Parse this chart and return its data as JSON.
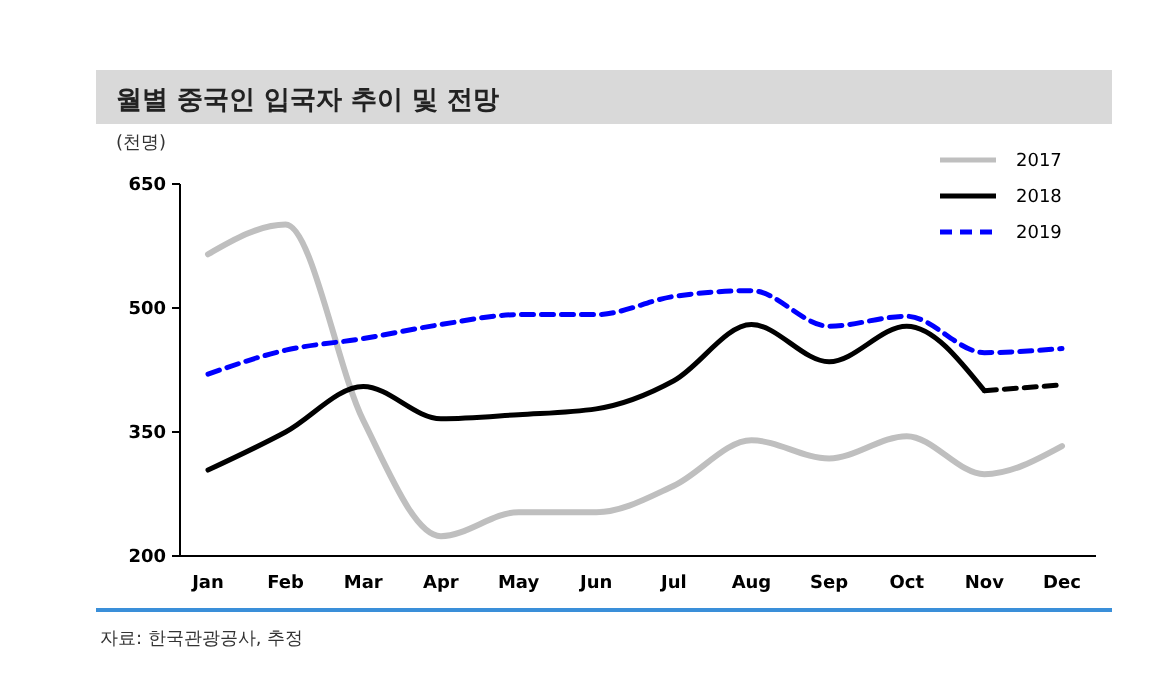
{
  "chart_data": {
    "type": "line",
    "title": "월별 중국인 입국자 추이 및 전망",
    "ylabel": "(천명)",
    "categories": [
      "Jan",
      "Feb",
      "Mar",
      "Apr",
      "May",
      "Jun",
      "Jul",
      "Aug",
      "Sep",
      "Oct",
      "Nov",
      "Dec"
    ],
    "series": [
      {
        "name": "2017",
        "color": "#bfbfbf",
        "line_style": "solid",
        "values": [
          565,
          601,
          364,
          224,
          253,
          253,
          285,
          340,
          318,
          345,
          299,
          333
        ]
      },
      {
        "name": "2018",
        "color": "#000000",
        "line_style": "solid",
        "values": [
          304,
          350,
          405,
          366,
          371,
          378,
          412,
          480,
          435,
          478,
          400,
          null
        ]
      },
      {
        "name": "2019",
        "color": "#0000ff",
        "line_style": "dashed",
        "values": [
          420,
          449,
          463,
          480,
          492,
          492,
          514,
          521,
          478,
          490,
          446,
          451
        ]
      },
      {
        "color": "#000000",
        "line_style": "dashed",
        "values": [
          null,
          null,
          null,
          null,
          null,
          null,
          null,
          null,
          null,
          null,
          400,
          407
        ]
      }
    ],
    "ylim": [
      200,
      650
    ],
    "yticks": [
      200,
      350,
      500,
      650
    ],
    "grid": false,
    "legend": "top right",
    "annotations": [
      "자료: 한국관광공사, 추정"
    ]
  }
}
